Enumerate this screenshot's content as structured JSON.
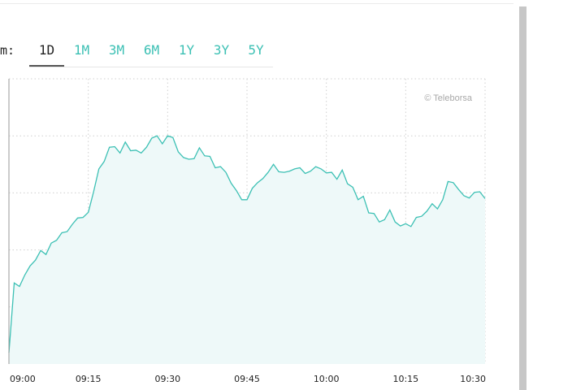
{
  "period_selector": {
    "label": "m:",
    "tabs": [
      {
        "label": "1D",
        "active": true
      },
      {
        "label": "1M",
        "active": false
      },
      {
        "label": "3M",
        "active": false
      },
      {
        "label": "6M",
        "active": false
      },
      {
        "label": "1Y",
        "active": false
      },
      {
        "label": "3Y",
        "active": false
      },
      {
        "label": "5Y",
        "active": false
      }
    ]
  },
  "watermark": "© Teleborsa",
  "colors": {
    "line": "#3cc0b4",
    "fill": "#eef9f9",
    "tab_active": "#222222",
    "tab_inactive": "#3cc0b4"
  },
  "chart_data": {
    "type": "area",
    "x_tick_labels": [
      "09:00",
      "09:15",
      "09:30",
      "09:45",
      "10:00",
      "10:15",
      "10:30"
    ],
    "x_range_minutes": [
      0,
      90
    ],
    "y_range": [
      0,
      5
    ],
    "y_gridlines": [
      1,
      2,
      3,
      4,
      5
    ],
    "grid": true,
    "series": [
      {
        "x": [
          0,
          1,
          2,
          3,
          4,
          5,
          6,
          7,
          8,
          9,
          10,
          11,
          12,
          13,
          14,
          15,
          16,
          17,
          18,
          19,
          20,
          21,
          22,
          23,
          24,
          25,
          26,
          27,
          28,
          29,
          30,
          31,
          32,
          33,
          34,
          35,
          36,
          37,
          38,
          39,
          40,
          41,
          42,
          43,
          44,
          45,
          46,
          47,
          48,
          49,
          50,
          51,
          52,
          53,
          54,
          55,
          56,
          57,
          58,
          59,
          60,
          61,
          62,
          63,
          64,
          65,
          66,
          67,
          68,
          69,
          70,
          71,
          72,
          73,
          74,
          75,
          76,
          77,
          78,
          79,
          80,
          81,
          82,
          83,
          84,
          85,
          86,
          87,
          88,
          89,
          90
        ],
        "values": [
          0.2,
          1.42,
          1.36,
          1.56,
          1.72,
          1.82,
          1.99,
          1.92,
          2.12,
          2.17,
          2.3,
          2.32,
          2.45,
          2.56,
          2.57,
          2.66,
          3.02,
          3.42,
          3.55,
          3.8,
          3.81,
          3.7,
          3.89,
          3.74,
          3.75,
          3.7,
          3.8,
          3.96,
          4.0,
          3.86,
          4.0,
          3.97,
          3.72,
          3.62,
          3.59,
          3.6,
          3.79,
          3.65,
          3.64,
          3.44,
          3.46,
          3.36,
          3.17,
          3.04,
          2.88,
          2.88,
          3.08,
          3.18,
          3.25,
          3.36,
          3.5,
          3.37,
          3.36,
          3.38,
          3.42,
          3.44,
          3.34,
          3.38,
          3.46,
          3.42,
          3.35,
          3.36,
          3.24,
          3.4,
          3.16,
          3.1,
          2.88,
          2.94,
          2.65,
          2.64,
          2.49,
          2.53,
          2.7,
          2.49,
          2.42,
          2.46,
          2.41,
          2.57,
          2.59,
          2.68,
          2.81,
          2.72,
          2.88,
          3.2,
          3.18,
          3.06,
          2.95,
          2.91,
          3.01,
          3.02,
          2.9
        ]
      }
    ]
  }
}
